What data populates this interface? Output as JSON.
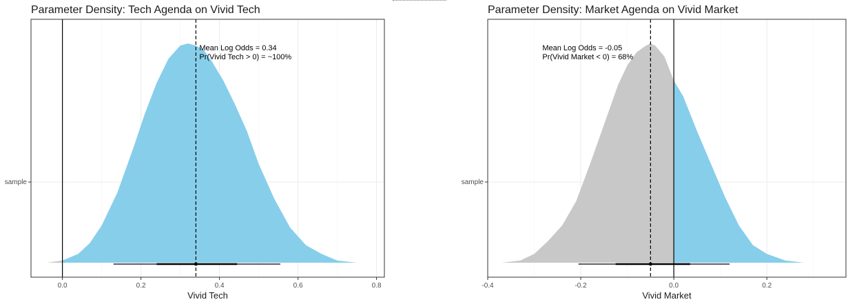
{
  "colors": {
    "positive_fill": "#87CEEB",
    "negative_fill": "#C8C8C8",
    "interval": "#000000"
  },
  "chart_data": [
    {
      "type": "area",
      "title": "Parameter Density: Tech Agenda on Vivid Tech",
      "xlabel": "Vivid Tech",
      "ylabel": "",
      "y_category": "sample",
      "xlim": [
        -0.08,
        0.82
      ],
      "x_ticks": [
        0.0,
        0.2,
        0.4,
        0.6,
        0.8
      ],
      "x_tick_labels": [
        "0.0",
        "0.2",
        "0.4",
        "0.6",
        "0.8"
      ],
      "zero_line": 0.0,
      "mean_line": 0.34,
      "fill_split_at": 0.0,
      "density": {
        "x": [
          -0.04,
          0.0,
          0.04,
          0.07,
          0.1,
          0.14,
          0.18,
          0.21,
          0.24,
          0.27,
          0.3,
          0.32,
          0.34,
          0.36,
          0.38,
          0.41,
          0.44,
          0.47,
          0.5,
          0.54,
          0.58,
          0.62,
          0.66,
          0.7,
          0.75
        ],
        "y": [
          0.0,
          0.01,
          0.04,
          0.09,
          0.17,
          0.32,
          0.52,
          0.68,
          0.82,
          0.93,
          0.99,
          1.0,
          0.99,
          0.97,
          0.92,
          0.83,
          0.72,
          0.6,
          0.45,
          0.29,
          0.16,
          0.08,
          0.04,
          0.01,
          0.0
        ]
      },
      "interval_outer": [
        0.13,
        0.555
      ],
      "interval_inner": [
        0.24,
        0.445
      ],
      "point": 0.34,
      "annotation": [
        "Mean Log Odds = 0.34",
        "Pr(Vivid Tech > 0) = ~100%"
      ]
    },
    {
      "type": "area",
      "title": "Parameter Density: Market Agenda on Vivid Market",
      "xlabel": "Vivid Market",
      "ylabel": "",
      "y_category": "sample",
      "xlim": [
        -0.4,
        0.37
      ],
      "x_ticks": [
        -0.4,
        -0.2,
        0.0,
        0.2
      ],
      "x_tick_labels": [
        "-0.4",
        "-0.2",
        "0.0",
        "0.2"
      ],
      "zero_line": 0.0,
      "mean_line": -0.05,
      "fill_split_at": 0.0,
      "density": {
        "x": [
          -0.37,
          -0.33,
          -0.3,
          -0.27,
          -0.24,
          -0.21,
          -0.18,
          -0.15,
          -0.12,
          -0.1,
          -0.08,
          -0.06,
          -0.05,
          -0.04,
          -0.02,
          0.0,
          0.02,
          0.05,
          0.08,
          0.11,
          0.14,
          0.17,
          0.2,
          0.24,
          0.28
        ],
        "y": [
          0.0,
          0.01,
          0.04,
          0.1,
          0.17,
          0.28,
          0.45,
          0.63,
          0.81,
          0.9,
          0.96,
          0.99,
          1.0,
          0.99,
          0.94,
          0.83,
          0.76,
          0.6,
          0.45,
          0.3,
          0.17,
          0.08,
          0.04,
          0.01,
          0.0
        ]
      },
      "interval_outer": [
        -0.205,
        0.12
      ],
      "interval_inner": [
        -0.125,
        0.035
      ],
      "point": -0.05,
      "annotation": [
        "Mean Log Odds = -0.05",
        "Pr(Vivid Market < 0) = 68%"
      ]
    }
  ]
}
